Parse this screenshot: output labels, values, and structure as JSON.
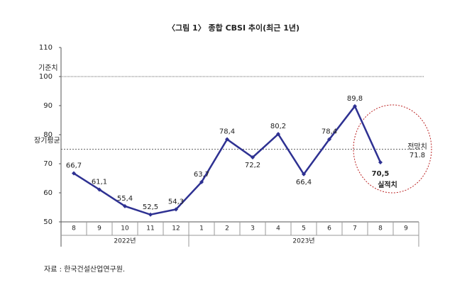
{
  "chart_data": {
    "type": "line",
    "title": "〈그림 1〉 종합 CBSI 추이(최근 1년)",
    "categories": [
      "8",
      "9",
      "10",
      "11",
      "12",
      "1",
      "2",
      "3",
      "4",
      "5",
      "6",
      "7",
      "8",
      "9"
    ],
    "category_groups": [
      {
        "label": "2022년",
        "from": 0,
        "to": 4
      },
      {
        "label": "2023년",
        "from": 5,
        "to": 13
      }
    ],
    "series": [
      {
        "name": "실적치",
        "color": "#2e3192",
        "values": [
          66.7,
          61.1,
          55.4,
          52.5,
          54.3,
          63.7,
          78.4,
          72.2,
          80.2,
          66.4,
          78.4,
          89.8,
          70.5,
          null
        ],
        "value_labels": [
          "66,7",
          "61,1",
          "55,4",
          "52,5",
          "54,3",
          "63,7",
          "78,4",
          "72,2",
          "80,2",
          "66,4",
          "78,4",
          "89,8",
          "70,5",
          null
        ]
      }
    ],
    "forecast": {
      "label": "전망치",
      "value": 71.8
    },
    "reference_lines": [
      {
        "label": "기준치",
        "value": 100
      },
      {
        "label": "장기평균",
        "value": 75
      }
    ],
    "ylim": [
      50,
      110
    ],
    "yticks": [
      50,
      60,
      70,
      80,
      90,
      100,
      110
    ],
    "source": "자료 : 한국건설산업연구원."
  }
}
